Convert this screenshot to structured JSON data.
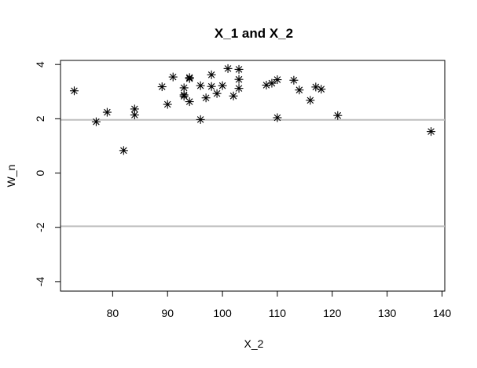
{
  "chart_data": {
    "type": "scatter",
    "title": "X_1 and X_2",
    "xlabel": "X_2",
    "ylabel": "W_n",
    "xlim": [
      70.5,
      140.5
    ],
    "ylim": [
      -4.35,
      4.15
    ],
    "x_ticks": [
      80,
      90,
      100,
      110,
      120,
      130,
      140
    ],
    "y_ticks": [
      -4,
      -2,
      0,
      2,
      4
    ],
    "x_tick_labels": [
      "80",
      "90",
      "100",
      "110",
      "120",
      "130",
      "140"
    ],
    "y_tick_labels": [
      "-4",
      "-2",
      "0",
      "2",
      "4"
    ],
    "reference_lines": [
      1.96,
      -1.96
    ],
    "reference_line_color": "#bebebe",
    "marker": "asterisk",
    "grid": false,
    "x": [
      73,
      77,
      79,
      82,
      84,
      84,
      89,
      90,
      91,
      93,
      93,
      93,
      94,
      94,
      94,
      96,
      96,
      97,
      98,
      98,
      99,
      100,
      101,
      102,
      103,
      103,
      103,
      108,
      109,
      110,
      110,
      113,
      114,
      116,
      117,
      118,
      121,
      138
    ],
    "y": [
      3.03,
      1.89,
      2.24,
      0.83,
      2.14,
      2.36,
      3.18,
      2.53,
      3.54,
      2.83,
      2.88,
      3.14,
      3.48,
      3.52,
      2.63,
      3.22,
      1.97,
      2.77,
      3.19,
      3.62,
      2.93,
      3.22,
      3.85,
      2.84,
      3.12,
      3.45,
      3.82,
      3.24,
      3.31,
      3.44,
      2.04,
      3.42,
      3.06,
      2.68,
      3.17,
      3.09,
      2.12,
      1.53
    ]
  }
}
